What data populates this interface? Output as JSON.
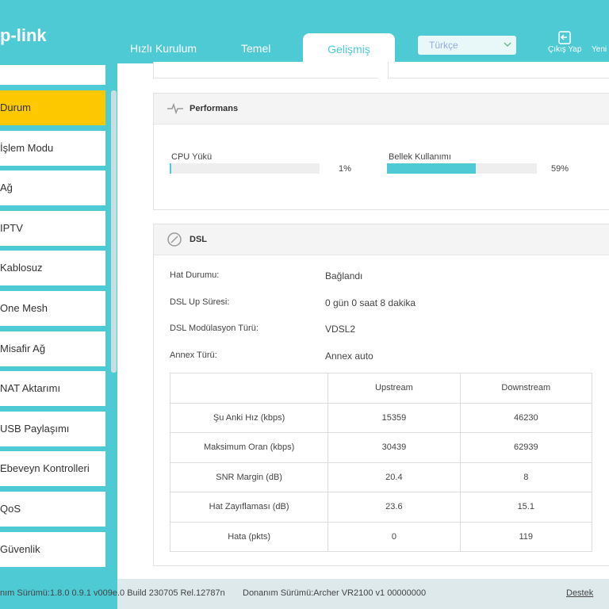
{
  "header": {
    "logo": "p-link",
    "tabs": [
      "Hızlı Kurulum",
      "Temel",
      "Gelişmiş"
    ],
    "language": "Türkçe",
    "logout": "Çıkış Yap",
    "reboot": "Yeni"
  },
  "sidebar": {
    "items": [
      "Durum",
      "İşlem Modu",
      "Ağ",
      "IPTV",
      "Kablosuz",
      "One Mesh",
      "Misafir Ağ",
      "NAT Aktarımı",
      "USB Paylaşımı",
      "Ebeveyn Kontrolleri",
      "QoS",
      "Güvenlik"
    ]
  },
  "performance": {
    "title": "Performans",
    "cpu": {
      "label": "CPU Yükü",
      "value": 1,
      "value_label": "1%"
    },
    "memory": {
      "label": "Bellek Kullanımı",
      "value": 59,
      "value_label": "59%"
    }
  },
  "dsl": {
    "title": "DSL",
    "info": [
      [
        "Hat Durumu:",
        "Bağlandı"
      ],
      [
        "DSL Up Süresi:",
        "0 gün 0 saat 8 dakika"
      ],
      [
        "DSL Modülasyon Türü:",
        "VDSL2"
      ],
      [
        "Annex Türü:",
        "Annex auto"
      ]
    ],
    "table": {
      "columns": [
        "Upstream",
        "Downstream"
      ],
      "rows": [
        [
          "Şu Anki Hız (kbps)",
          "15359",
          "46230"
        ],
        [
          "Maksimum Oran (kbps)",
          "30439",
          "62939"
        ],
        [
          "SNR Margin (dB)",
          "20.4",
          "8"
        ],
        [
          "Hat Zayıflaması (dB)",
          "23.6",
          "15.1"
        ],
        [
          "Hata (pkts)",
          "0",
          "119"
        ]
      ]
    }
  },
  "footer": {
    "firmware": "nım Sürümü:1.8.0 0.9.1 v009e.0 Build 230705 Rel.12787n",
    "hardware": "Donanım Sürümü:Archer VR2100 v1 00000000",
    "support": "Destek"
  }
}
